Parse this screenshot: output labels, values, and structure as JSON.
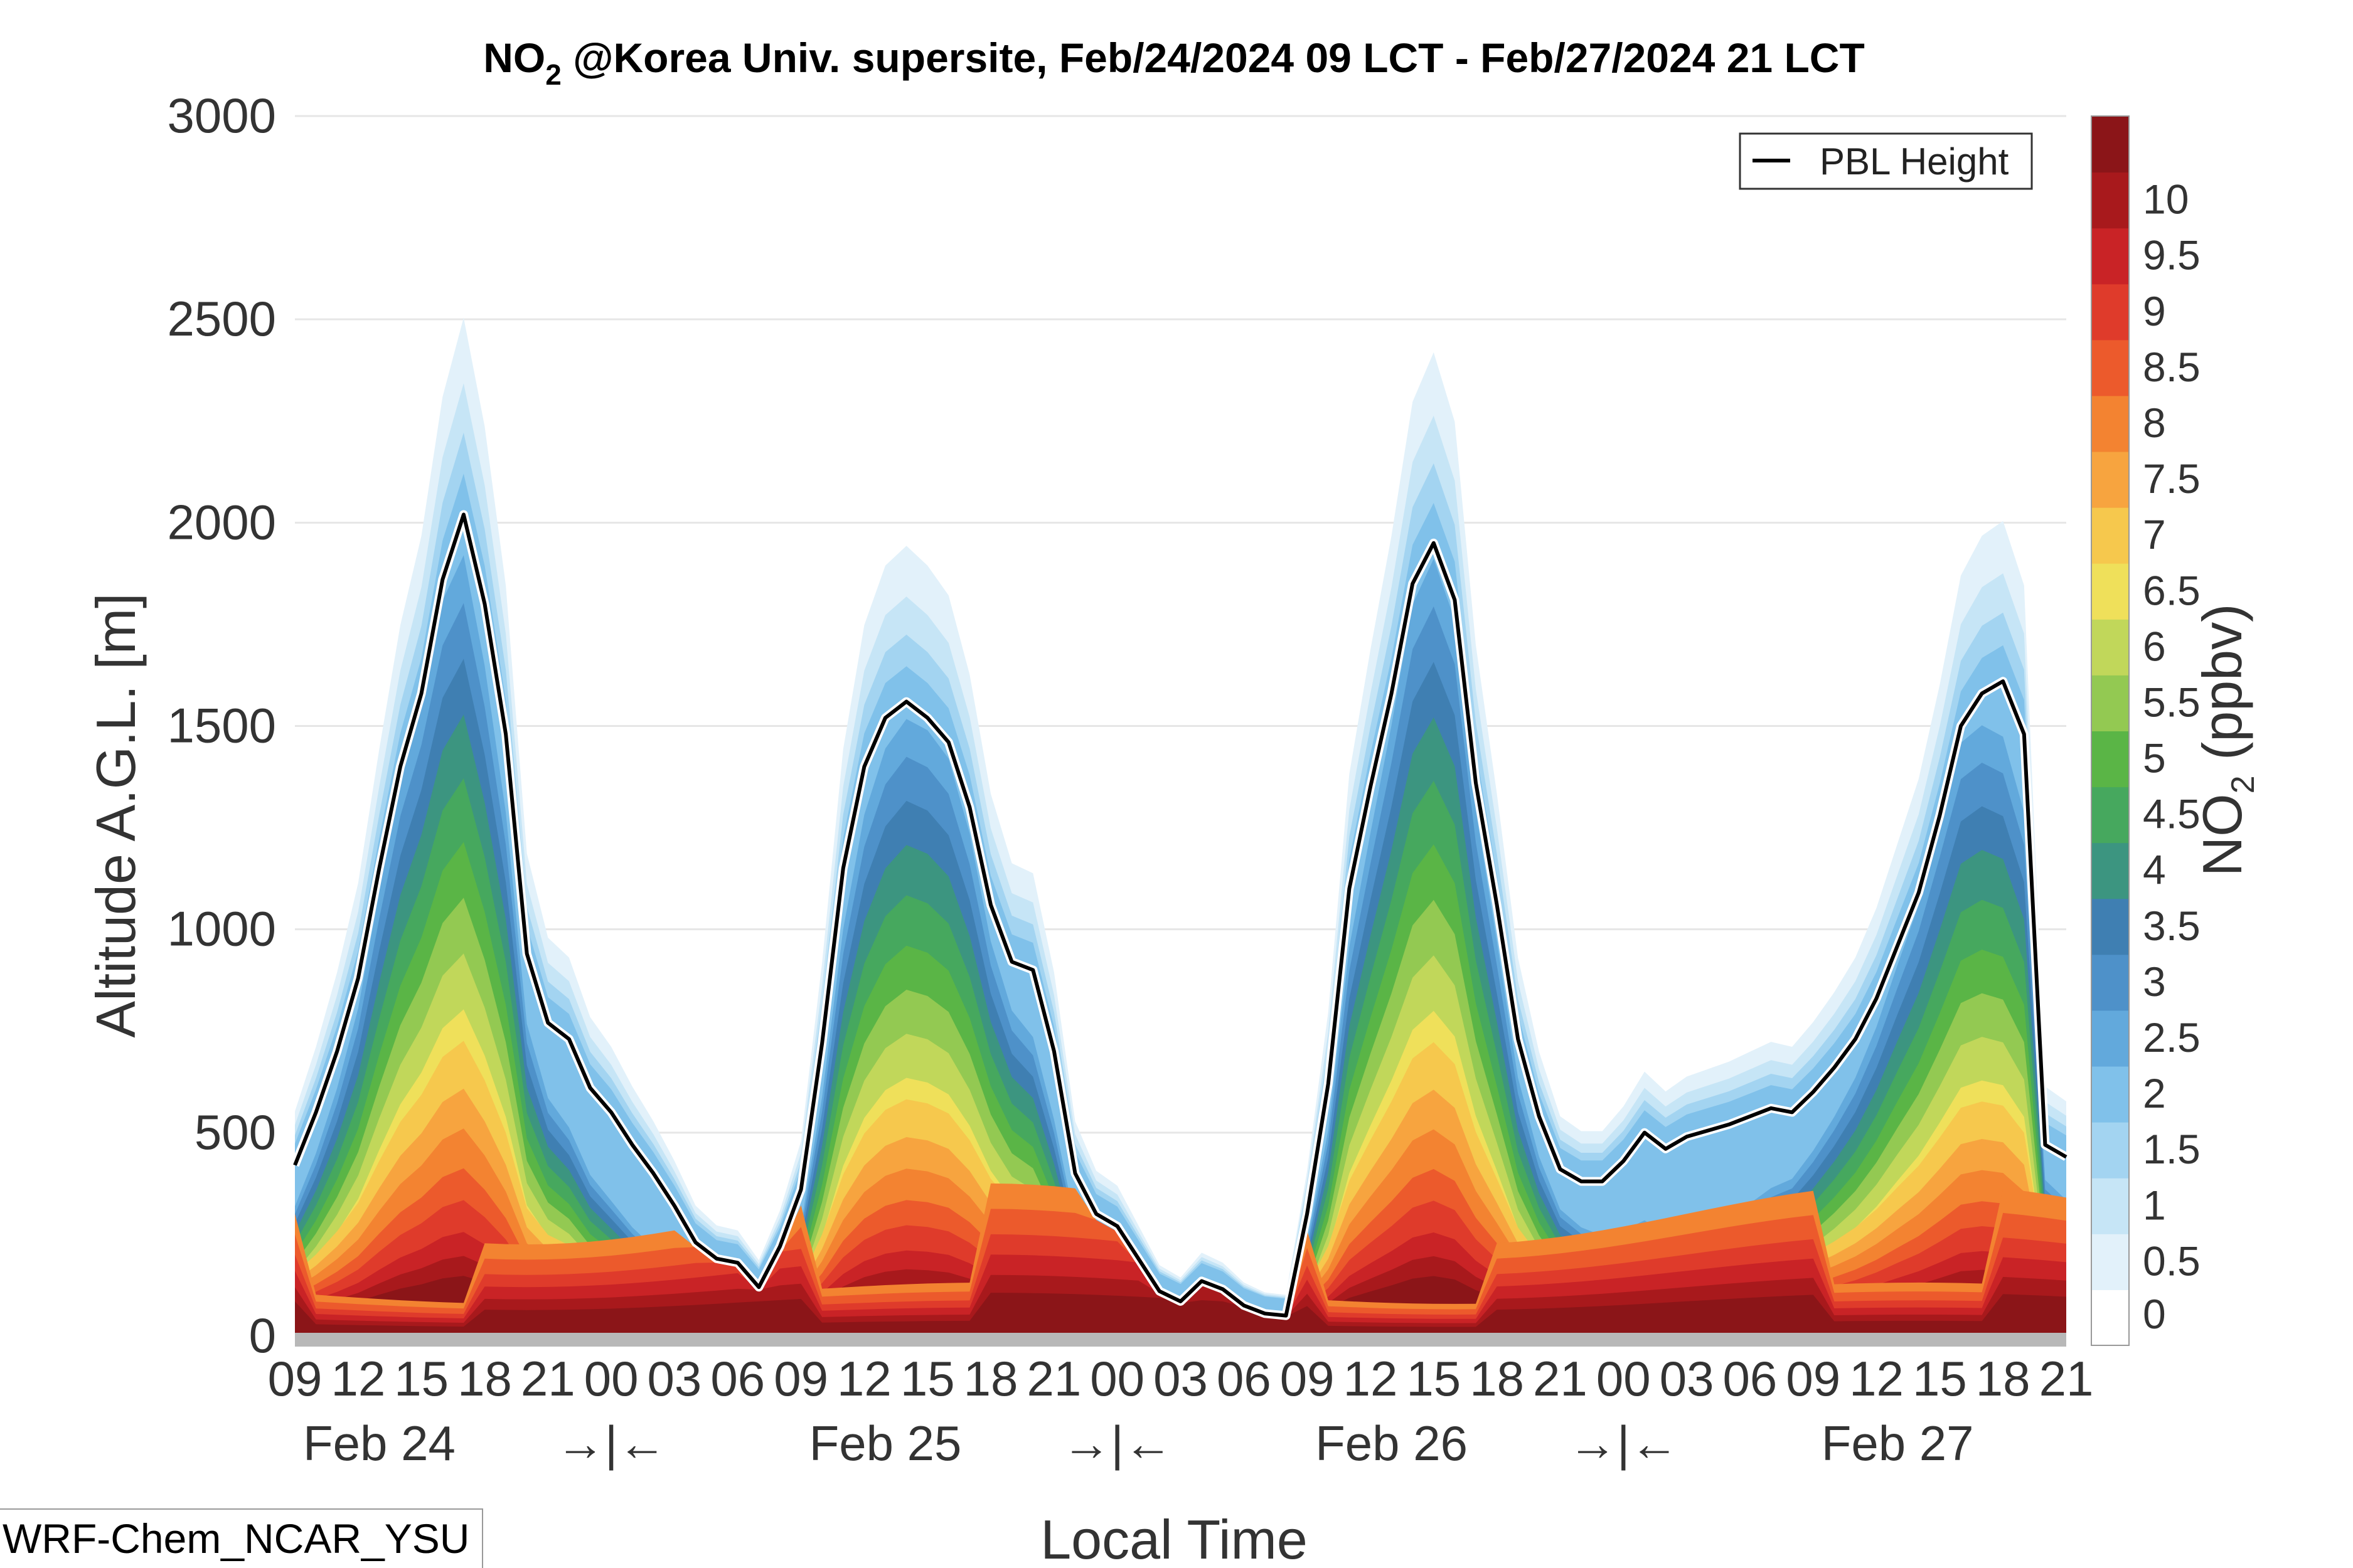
{
  "chart_data": {
    "type": "heatmap",
    "title_main": "NO",
    "title_sub": "2",
    "title_rest": " @Korea Univ. supersite, Feb/24/2024 09 LCT - Feb/27/2024 21 LCT",
    "xlabel": "Local Time",
    "ylabel": "Altitude A.G.L. [m]",
    "ylim": [
      0,
      3000
    ],
    "y_ticks": [
      "0",
      "500",
      "1000",
      "1500",
      "2000",
      "2500",
      "3000"
    ],
    "x_hours": [
      "09",
      "12",
      "15",
      "18",
      "21",
      "00",
      "03",
      "06",
      "09",
      "12",
      "15",
      "18",
      "21",
      "00",
      "03",
      "06",
      "09",
      "12",
      "15",
      "18",
      "21",
      "00",
      "03",
      "06",
      "09",
      "12",
      "15",
      "18",
      "21"
    ],
    "x_days": [
      "Feb 24",
      "Feb 25",
      "Feb 26",
      "Feb 27"
    ],
    "x_separator": "→|←",
    "grid": true,
    "colorbar": {
      "label_main": "NO",
      "label_sub": "2",
      "label_rest": " (ppbv)",
      "ticks": [
        "0",
        "0.5",
        "1",
        "1.5",
        "2",
        "2.5",
        "3",
        "3.5",
        "4",
        "4.5",
        "5",
        "5.5",
        "6",
        "6.5",
        "7",
        "7.5",
        "8",
        "8.5",
        "9",
        "9.5",
        "10"
      ],
      "levels": [
        "#ffffff",
        "#e2f1fa",
        "#c6e5f6",
        "#a3d4f1",
        "#80c1ea",
        "#62a9dc",
        "#4e91c9",
        "#3f7fb2",
        "#3c9580",
        "#46a85e",
        "#5ab546",
        "#93c952",
        "#c1d75a",
        "#efe05a",
        "#f6c84d",
        "#f7a43f",
        "#f38331",
        "#ec5a2c",
        "#df3b2b",
        "#c92326",
        "#a8191c",
        "#8b1518"
      ]
    },
    "pbl_series": {
      "name": "PBL Height",
      "x_hours_since_start": [
        0,
        1,
        2,
        3,
        4,
        5,
        6,
        7,
        8,
        9,
        10,
        11,
        12,
        13,
        14,
        15,
        16,
        17,
        18,
        19,
        20,
        21,
        22,
        23,
        24,
        25,
        26,
        27,
        28,
        29,
        30,
        31,
        32,
        33,
        34,
        35,
        36,
        37,
        38,
        39,
        40,
        41,
        42,
        43,
        44,
        45,
        46,
        47,
        48,
        49,
        50,
        51,
        52,
        53,
        54,
        55,
        56,
        57,
        58,
        59,
        60,
        61,
        62,
        63,
        64,
        65,
        66,
        67,
        68,
        69,
        70,
        71,
        72,
        73,
        74,
        75,
        76,
        77,
        78,
        79,
        80,
        81,
        82,
        83,
        84
      ],
      "values_m": [
        420,
        550,
        700,
        880,
        1150,
        1400,
        1580,
        1860,
        2020,
        1800,
        1480,
        940,
        770,
        730,
        610,
        550,
        470,
        400,
        320,
        230,
        190,
        180,
        120,
        220,
        360,
        720,
        1150,
        1400,
        1520,
        1560,
        1520,
        1460,
        1300,
        1060,
        920,
        900,
        700,
        400,
        300,
        270,
        190,
        110,
        85,
        135,
        115,
        75,
        55,
        50,
        300,
        620,
        1100,
        1350,
        1580,
        1850,
        1950,
        1810,
        1360,
        1060,
        730,
        540,
        410,
        380,
        380,
        430,
        500,
        460,
        490,
        505,
        520,
        540,
        560,
        550,
        600,
        660,
        730,
        830,
        960,
        1090,
        1280,
        1500,
        1580,
        1610,
        1480,
        470,
        440
      ]
    },
    "model": "WRF-Chem_NCAR_YSU"
  }
}
